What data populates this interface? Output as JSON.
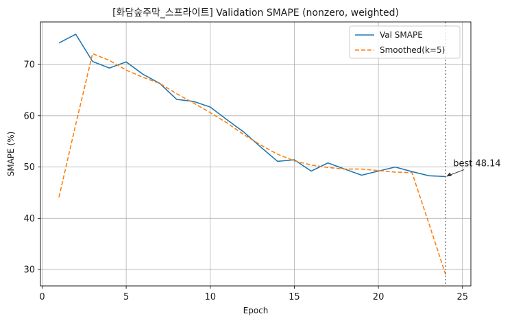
{
  "chart_data": {
    "type": "line",
    "title": "[화담숲주막_스프라이트] Validation SMAPE (nonzero, weighted)",
    "xlabel": "Epoch",
    "ylabel": "SMAPE (%)",
    "xlim": [
      -0.1,
      25.5
    ],
    "ylim": [
      26.8,
      78.3
    ],
    "xticks": [
      0,
      5,
      10,
      15,
      20,
      25
    ],
    "yticks": [
      30,
      40,
      50,
      60,
      70
    ],
    "grid": true,
    "legend_position": "top-right",
    "x": [
      1,
      2,
      3,
      4,
      5,
      6,
      7,
      8,
      9,
      10,
      11,
      12,
      13,
      14,
      15,
      16,
      17,
      18,
      19,
      20,
      21,
      22,
      23,
      24
    ],
    "series": [
      {
        "name": "Val SMAPE",
        "color": "#1f77b4",
        "style": "solid",
        "values": [
          74.2,
          75.9,
          70.6,
          69.3,
          70.5,
          68.1,
          66.3,
          63.2,
          62.8,
          61.7,
          59.2,
          56.8,
          53.9,
          51.1,
          51.4,
          49.2,
          50.8,
          49.6,
          48.4,
          49.2,
          50.0,
          49.1,
          48.3,
          48.14
        ]
      },
      {
        "name": "Smoothed(k=5)",
        "color": "#ff7f0e",
        "style": "dashed",
        "values": [
          44.1,
          58.3,
          72.1,
          70.8,
          68.9,
          67.5,
          66.3,
          64.3,
          62.5,
          60.6,
          58.6,
          56.3,
          54.3,
          52.5,
          51.2,
          50.4,
          49.9,
          49.6,
          49.6,
          49.3,
          49.0,
          48.9,
          39.0,
          29.0
        ]
      }
    ],
    "vline": {
      "x": 24,
      "color": "#808080",
      "style": "dotted"
    },
    "annotations": [
      {
        "text": "best 48.14",
        "point_x": 24,
        "point_y": 48.14
      }
    ]
  }
}
